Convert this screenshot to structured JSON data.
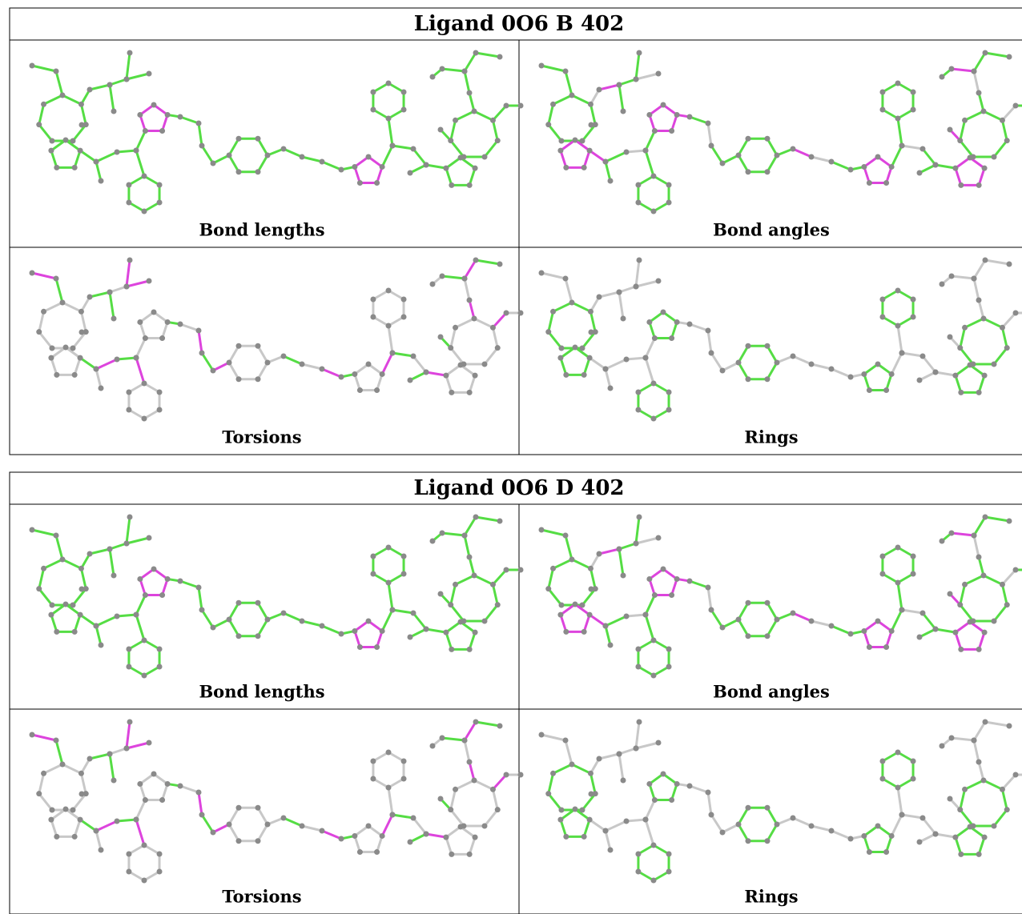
{
  "tables": [
    {
      "title": "Ligand 0O6 B 402",
      "panels": [
        "Bond lengths",
        "Bond angles",
        "Torsions",
        "Rings"
      ]
    },
    {
      "title": "Ligand 0O6 D 402",
      "panels": [
        "Bond lengths",
        "Bond angles",
        "Torsions",
        "Rings"
      ]
    }
  ]
}
